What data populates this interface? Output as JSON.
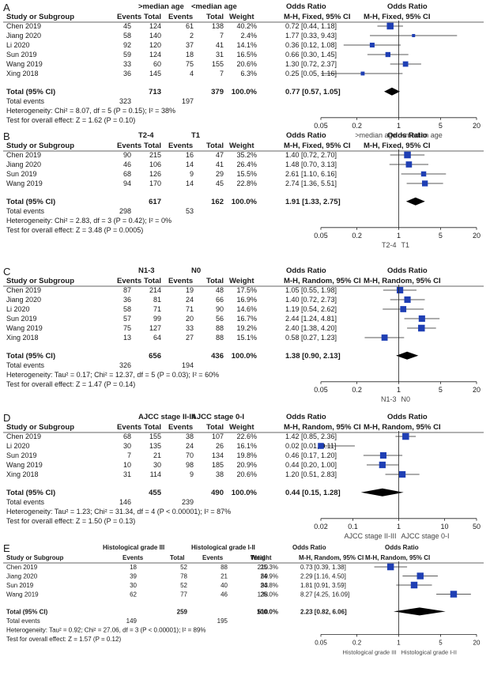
{
  "chart_data": [
    {
      "type": "forest",
      "panel_label": "A",
      "group_headers": [
        ">median age",
        "<median age"
      ],
      "columns": [
        "Study or Subgroup",
        "Events",
        "Total",
        "Events",
        "Total",
        "Weight"
      ],
      "or_header": "Odds Ratio",
      "method": "M-H, Fixed, 95% CI",
      "studies": [
        {
          "name": "Chen 2019",
          "e1": "45",
          "t1": "124",
          "e2": "61",
          "t2": "138",
          "weight": "40.2%",
          "ci_text": "0.72 [0.44, 1.18]",
          "or": 0.72,
          "lo": 0.44,
          "hi": 1.18,
          "w": 40.2
        },
        {
          "name": "Jiang 2020",
          "e1": "58",
          "t1": "140",
          "e2": "2",
          "t2": "7",
          "weight": "2.4%",
          "ci_text": "1.77 [0.33, 9.43]",
          "or": 1.77,
          "lo": 0.33,
          "hi": 9.43,
          "w": 2.4
        },
        {
          "name": "Li 2020",
          "e1": "92",
          "t1": "120",
          "e2": "37",
          "t2": "41",
          "weight": "14.1%",
          "ci_text": "0.36 [0.12, 1.08]",
          "or": 0.36,
          "lo": 0.12,
          "hi": 1.08,
          "w": 14.1
        },
        {
          "name": "Sun 2019",
          "e1": "59",
          "t1": "124",
          "e2": "18",
          "t2": "31",
          "weight": "16.5%",
          "ci_text": "0.66 [0.30, 1.45]",
          "or": 0.66,
          "lo": 0.3,
          "hi": 1.45,
          "w": 16.5
        },
        {
          "name": "Wang 2019",
          "e1": "33",
          "t1": "60",
          "e2": "75",
          "t2": "155",
          "weight": "20.6%",
          "ci_text": "1.30 [0.72, 2.37]",
          "or": 1.3,
          "lo": 0.72,
          "hi": 2.37,
          "w": 20.6
        },
        {
          "name": "Xing 2018",
          "e1": "36",
          "t1": "145",
          "e2": "4",
          "t2": "7",
          "weight": "6.3%",
          "ci_text": "0.25 [0.05, 1.16]",
          "or": 0.25,
          "lo": 0.05,
          "hi": 1.16,
          "w": 6.3
        }
      ],
      "total": {
        "label": "Total (95% CI)",
        "t1": "713",
        "t2": "379",
        "weight": "100.0%",
        "ci_text": "0.77 [0.57, 1.05]",
        "or": 0.77,
        "lo": 0.57,
        "hi": 1.05
      },
      "total_events": {
        "label": "Total events",
        "e1": "323",
        "e2": "197"
      },
      "heterogeneity": "Heterogeneity: Chi² = 8.07, df = 5 (P = 0.15); I² = 38%",
      "overall_effect": "Test for overall effect: Z = 1.62 (P = 0.10)",
      "x_ticks": [
        "0.05",
        "0.2",
        "1",
        "5",
        "20"
      ],
      "xlim": [
        0.05,
        20
      ],
      "x_scale": "log",
      "favours": [
        ">median age",
        "<median age"
      ]
    },
    {
      "type": "forest",
      "panel_label": "B",
      "group_headers": [
        "T2-4",
        "T1"
      ],
      "columns": [
        "Study or Subgroup",
        "Events",
        "Total",
        "Events",
        "Total",
        "Weight"
      ],
      "or_header": "Odds Ratio",
      "method": "M-H, Fixed, 95% CI",
      "studies": [
        {
          "name": "Chen 2019",
          "e1": "90",
          "t1": "215",
          "e2": "16",
          "t2": "47",
          "weight": "35.2%",
          "ci_text": "1.40 [0.72, 2.70]",
          "or": 1.4,
          "lo": 0.72,
          "hi": 2.7,
          "w": 35.2
        },
        {
          "name": "Jiang 2020",
          "e1": "46",
          "t1": "106",
          "e2": "14",
          "t2": "41",
          "weight": "26.4%",
          "ci_text": "1.48 [0.70, 3.13]",
          "or": 1.48,
          "lo": 0.7,
          "hi": 3.13,
          "w": 26.4
        },
        {
          "name": "Sun 2019",
          "e1": "68",
          "t1": "126",
          "e2": "9",
          "t2": "29",
          "weight": "15.5%",
          "ci_text": "2.61 [1.10, 6.16]",
          "or": 2.61,
          "lo": 1.1,
          "hi": 6.16,
          "w": 15.5
        },
        {
          "name": "Wang 2019",
          "e1": "94",
          "t1": "170",
          "e2": "14",
          "t2": "45",
          "weight": "22.8%",
          "ci_text": "2.74 [1.36, 5.51]",
          "or": 2.74,
          "lo": 1.36,
          "hi": 5.51,
          "w": 22.8
        }
      ],
      "total": {
        "label": "Total (95% CI)",
        "t1": "617",
        "t2": "162",
        "weight": "100.0%",
        "ci_text": "1.91 [1.33, 2.75]",
        "or": 1.91,
        "lo": 1.33,
        "hi": 2.75
      },
      "total_events": {
        "label": "Total events",
        "e1": "298",
        "e2": "53"
      },
      "heterogeneity": "Heterogeneity: Chi² = 2.83, df = 3 (P = 0.42); I² = 0%",
      "overall_effect": "Test for overall effect: Z = 3.48 (P = 0.0005)",
      "x_ticks": [
        "0.05",
        "0.2",
        "1",
        "5",
        "20"
      ],
      "xlim": [
        0.05,
        20
      ],
      "x_scale": "log",
      "favours": [
        "T2-4",
        "T1"
      ]
    },
    {
      "type": "forest",
      "panel_label": "C",
      "group_headers": [
        "N1-3",
        "N0"
      ],
      "columns": [
        "Study or Subgroup",
        "Events",
        "Total",
        "Events",
        "Total",
        "Weight"
      ],
      "or_header": "Odds Ratio",
      "method": "M-H, Random, 95% CI",
      "studies": [
        {
          "name": "Chen 2019",
          "e1": "87",
          "t1": "214",
          "e2": "19",
          "t2": "48",
          "weight": "17.5%",
          "ci_text": "1.05 [0.55, 1.98]",
          "or": 1.05,
          "lo": 0.55,
          "hi": 1.98,
          "w": 17.5
        },
        {
          "name": "Jiang 2020",
          "e1": "36",
          "t1": "81",
          "e2": "24",
          "t2": "66",
          "weight": "16.9%",
          "ci_text": "1.40 [0.72, 2.73]",
          "or": 1.4,
          "lo": 0.72,
          "hi": 2.73,
          "w": 16.9
        },
        {
          "name": "Li 2020",
          "e1": "58",
          "t1": "71",
          "e2": "71",
          "t2": "90",
          "weight": "14.6%",
          "ci_text": "1.19 [0.54, 2.62]",
          "or": 1.19,
          "lo": 0.54,
          "hi": 2.62,
          "w": 14.6
        },
        {
          "name": "Sun 2019",
          "e1": "57",
          "t1": "99",
          "e2": "20",
          "t2": "56",
          "weight": "16.7%",
          "ci_text": "2.44 [1.24, 4.81]",
          "or": 2.44,
          "lo": 1.24,
          "hi": 4.81,
          "w": 16.7
        },
        {
          "name": "Wang 2019",
          "e1": "75",
          "t1": "127",
          "e2": "33",
          "t2": "88",
          "weight": "19.2%",
          "ci_text": "2.40 [1.38, 4.20]",
          "or": 2.4,
          "lo": 1.38,
          "hi": 4.2,
          "w": 19.2
        },
        {
          "name": "Xing 2018",
          "e1": "13",
          "t1": "64",
          "e2": "27",
          "t2": "88",
          "weight": "15.1%",
          "ci_text": "0.58 [0.27, 1.23]",
          "or": 0.58,
          "lo": 0.27,
          "hi": 1.23,
          "w": 15.1
        }
      ],
      "total": {
        "label": "Total (95% CI)",
        "t1": "656",
        "t2": "436",
        "weight": "100.0%",
        "ci_text": "1.38 [0.90, 2.13]",
        "or": 1.38,
        "lo": 0.9,
        "hi": 2.13
      },
      "total_events": {
        "label": "Total events",
        "e1": "326",
        "e2": "194"
      },
      "heterogeneity": "Heterogeneity: Tau² = 0.17; Chi² = 12.37, df = 5 (P = 0.03); I² = 60%",
      "overall_effect": "Test for overall effect: Z = 1.47 (P = 0.14)",
      "x_ticks": [
        "0.05",
        "0.2",
        "1",
        "5",
        "20"
      ],
      "xlim": [
        0.05,
        20
      ],
      "x_scale": "log",
      "favours": [
        "N1-3",
        "N0"
      ]
    },
    {
      "type": "forest",
      "panel_label": "D",
      "group_headers": [
        "AJCC stage II-III",
        "AJCC stage 0-I"
      ],
      "columns": [
        "Study or Subgroup",
        "Events",
        "Total",
        "Events",
        "Total",
        "Weight"
      ],
      "or_header": "Odds Ratio",
      "method": "M-H, Random, 95% CI",
      "studies": [
        {
          "name": "Chen 2019",
          "e1": "68",
          "t1": "155",
          "e2": "38",
          "t2": "107",
          "weight": "22.6%",
          "ci_text": "1.42 [0.85, 2.36]",
          "or": 1.42,
          "lo": 0.85,
          "hi": 2.36,
          "w": 22.6
        },
        {
          "name": "Li 2020",
          "e1": "30",
          "t1": "135",
          "e2": "24",
          "t2": "26",
          "weight": "16.1%",
          "ci_text": "0.02 [0.01, 0.11]",
          "or": 0.02,
          "lo": 0.01,
          "hi": 0.11,
          "w": 16.1
        },
        {
          "name": "Sun 2019",
          "e1": "7",
          "t1": "21",
          "e2": "70",
          "t2": "134",
          "weight": "19.8%",
          "ci_text": "0.46 [0.17, 1.20]",
          "or": 0.46,
          "lo": 0.17,
          "hi": 1.2,
          "w": 19.8
        },
        {
          "name": "Wang 2019",
          "e1": "10",
          "t1": "30",
          "e2": "98",
          "t2": "185",
          "weight": "20.9%",
          "ci_text": "0.44 [0.20, 1.00]",
          "or": 0.44,
          "lo": 0.2,
          "hi": 1.0,
          "w": 20.9
        },
        {
          "name": "Xing 2018",
          "e1": "31",
          "t1": "114",
          "e2": "9",
          "t2": "38",
          "weight": "20.6%",
          "ci_text": "1.20 [0.51, 2.83]",
          "or": 1.2,
          "lo": 0.51,
          "hi": 2.83,
          "w": 20.6
        }
      ],
      "total": {
        "label": "Total (95% CI)",
        "t1": "455",
        "t2": "490",
        "weight": "100.0%",
        "ci_text": "0.44 [0.15, 1.28]",
        "or": 0.44,
        "lo": 0.15,
        "hi": 1.28
      },
      "total_events": {
        "label": "Total events",
        "e1": "146",
        "e2": "239"
      },
      "heterogeneity": "Heterogeneity: Tau² = 1.23; Chi² = 31.34, df = 4 (P < 0.00001); I² = 87%",
      "overall_effect": "Test for overall effect: Z = 1.50 (P = 0.13)",
      "x_ticks": [
        "0.02",
        "0.1",
        "1",
        "10",
        "50"
      ],
      "xlim": [
        0.02,
        50
      ],
      "x_scale": "log",
      "favours": [
        "AJCC stage II-III",
        "AJCC stage 0-I"
      ]
    },
    {
      "type": "forest",
      "panel_label": "E",
      "group_headers": [
        "Histological grade III",
        "Histological grade I-II"
      ],
      "columns": [
        "Study or Subgroup",
        "Events",
        "Total",
        "Events",
        "Total",
        "Weight"
      ],
      "or_header": "Odds Ratio",
      "method": "M-H, Random, 95% CI",
      "studies": [
        {
          "name": "Chen 2019",
          "e1": "18",
          "t1": "52",
          "e2": "88",
          "t2": "210",
          "weight": "25.3%",
          "ci_text": "0.73 [0.39, 1.38]",
          "or": 0.73,
          "lo": 0.39,
          "hi": 1.38,
          "w": 25.3
        },
        {
          "name": "Jiang 2020",
          "e1": "39",
          "t1": "78",
          "e2": "21",
          "t2": "69",
          "weight": "24.9%",
          "ci_text": "2.29 [1.16, 4.50]",
          "or": 2.29,
          "lo": 1.16,
          "hi": 4.5,
          "w": 24.9
        },
        {
          "name": "Sun 2019",
          "e1": "30",
          "t1": "52",
          "e2": "40",
          "t2": "93",
          "weight": "24.8%",
          "ci_text": "1.81 [0.91, 3.59]",
          "or": 1.81,
          "lo": 0.91,
          "hi": 3.59,
          "w": 24.8
        },
        {
          "name": "Wang 2019",
          "e1": "62",
          "t1": "77",
          "e2": "46",
          "t2": "138",
          "weight": "25.0%",
          "ci_text": "8.27 [4.25, 16.09]",
          "or": 8.27,
          "lo": 4.25,
          "hi": 16.09,
          "w": 25.0
        }
      ],
      "total": {
        "label": "Total (95% CI)",
        "t1": "259",
        "t2": "510",
        "weight": "100.0%",
        "ci_text": "2.23 [0.82, 6.06]",
        "or": 2.23,
        "lo": 0.82,
        "hi": 6.06
      },
      "total_events": {
        "label": "Total events",
        "e1": "149",
        "e2": "195"
      },
      "heterogeneity": "Heterogeneity: Tau² = 0.92; Chi² = 27.06, df = 3 (P < 0.00001); I² = 89%",
      "overall_effect": "Test for overall effect: Z = 1.57 (P = 0.12)",
      "x_ticks": [
        "0.05",
        "0.2",
        "1",
        "5",
        "20"
      ],
      "xlim": [
        0.05,
        20
      ],
      "x_scale": "log",
      "favours": [
        "Histological grade III",
        "Histological grade I-II"
      ]
    }
  ]
}
